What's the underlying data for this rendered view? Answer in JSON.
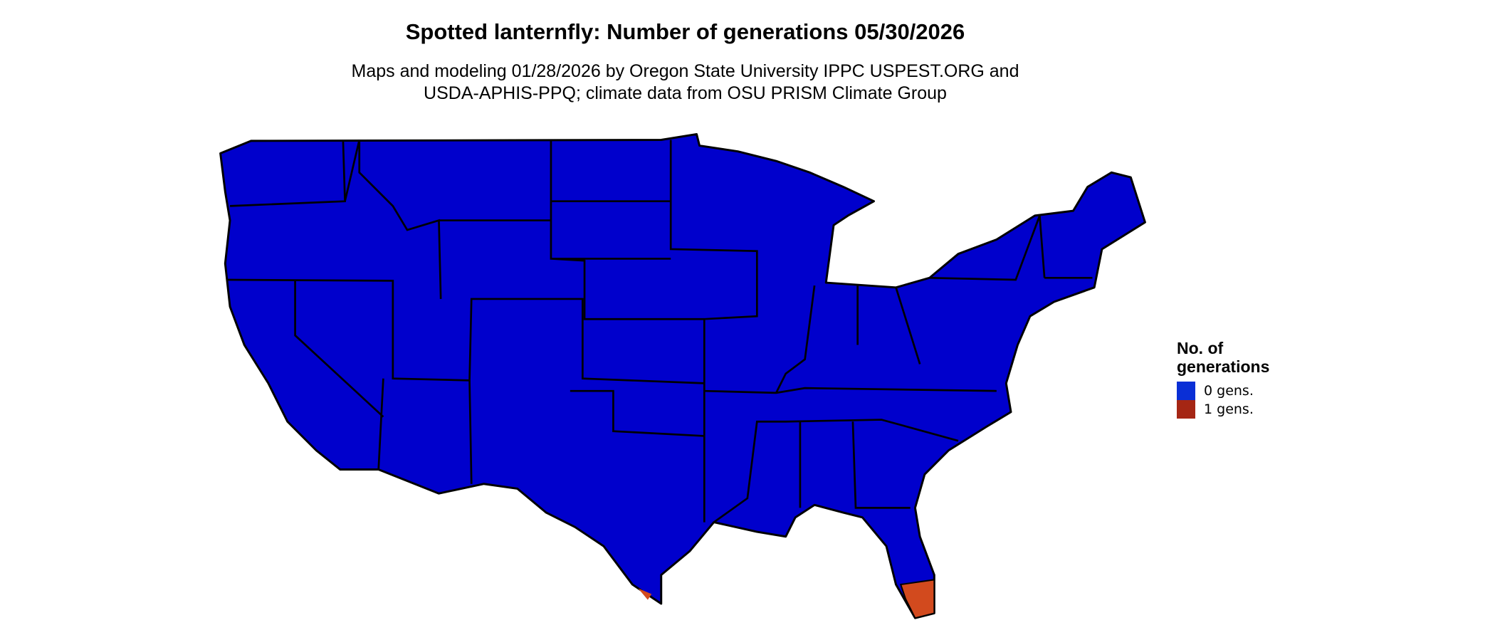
{
  "title": "Spotted lanternfly: Number of generations 05/30/2026",
  "subtitle_line1": "Maps and modeling 01/28/2026 by Oregon State University IPPC USPEST.ORG and",
  "subtitle_line2": "USDA-APHIS-PPQ; climate data from OSU PRISM Climate Group",
  "map": {
    "region": "Contiguous United States with state boundaries",
    "base_fill": "#0000cc",
    "highlight_areas": [
      "South Florida",
      "Southern tip of Texas"
    ]
  },
  "legend": {
    "title_line1": "No. of",
    "title_line2": "generations",
    "items": [
      {
        "label": "0 gens.",
        "color": "#0a2fd6"
      },
      {
        "label": "1 gens.",
        "color": "#a52614"
      }
    ]
  }
}
